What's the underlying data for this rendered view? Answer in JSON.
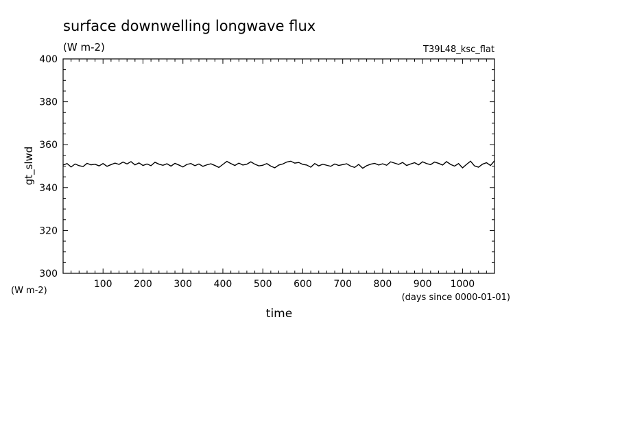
{
  "chart_data": {
    "type": "line",
    "title": "surface downwelling longwave flux",
    "subtitle": "(W m-2)",
    "run_label": "T39L48_ksc_flat",
    "ylabel": "gt_slwd",
    "yunits": "(W m-2)",
    "xlabel": "time",
    "xunits": "(days since 0000-01-01)",
    "xlim": [
      0,
      1080
    ],
    "ylim": [
      300,
      400
    ],
    "xticks": [
      100,
      200,
      300,
      400,
      500,
      600,
      700,
      800,
      900,
      1000
    ],
    "yticks": [
      300,
      320,
      340,
      360,
      380,
      400
    ],
    "grid": false,
    "color": "#000000",
    "series": [
      {
        "x": [
          0,
          10,
          20,
          30,
          40,
          50,
          60,
          70,
          80,
          90,
          100,
          110,
          120,
          130,
          140,
          150,
          160,
          170,
          180,
          190,
          200,
          210,
          220,
          230,
          240,
          250,
          260,
          270,
          280,
          290,
          300,
          310,
          320,
          330,
          340,
          350,
          360,
          370,
          380,
          390,
          400,
          410,
          420,
          430,
          440,
          450,
          460,
          470,
          480,
          490,
          500,
          510,
          520,
          530,
          540,
          550,
          560,
          570,
          580,
          590,
          600,
          610,
          620,
          630,
          640,
          650,
          660,
          670,
          680,
          690,
          700,
          710,
          720,
          730,
          740,
          750,
          760,
          770,
          780,
          790,
          800,
          810,
          820,
          830,
          840,
          850,
          860,
          870,
          880,
          890,
          900,
          910,
          920,
          930,
          940,
          950,
          960,
          970,
          980,
          990,
          1000,
          1010,
          1020,
          1030,
          1040,
          1050,
          1060,
          1070,
          1080
        ],
        "y": [
          350.5,
          351.2,
          349.6,
          351.0,
          350.2,
          349.8,
          351.3,
          350.6,
          350.9,
          350.1,
          351.2,
          349.9,
          350.7,
          351.4,
          350.8,
          351.9,
          351.0,
          352.1,
          350.6,
          351.5,
          350.3,
          351.0,
          350.2,
          351.8,
          350.9,
          350.4,
          351.1,
          350.0,
          351.3,
          350.5,
          349.6,
          350.8,
          351.2,
          350.2,
          351.0,
          349.9,
          350.6,
          351.1,
          350.3,
          349.4,
          350.8,
          352.2,
          351.2,
          350.3,
          351.4,
          350.5,
          350.9,
          352.0,
          350.9,
          350.1,
          350.4,
          351.2,
          350.0,
          349.2,
          350.5,
          351.0,
          351.9,
          352.3,
          351.4,
          351.7,
          350.8,
          350.5,
          349.5,
          351.2,
          350.1,
          350.9,
          350.4,
          349.9,
          351.0,
          350.3,
          350.7,
          351.1,
          350.0,
          349.4,
          350.8,
          349.0,
          350.2,
          350.9,
          351.3,
          350.5,
          351.1,
          350.4,
          352.0,
          351.4,
          350.8,
          351.7,
          350.3,
          351.0,
          351.6,
          350.6,
          352.0,
          351.2,
          350.7,
          351.9,
          351.3,
          350.5,
          352.1,
          350.8,
          350.0,
          351.2,
          349.2,
          350.8,
          352.3,
          350.1,
          349.5,
          350.9,
          351.6,
          350.3,
          352.5
        ]
      }
    ]
  }
}
